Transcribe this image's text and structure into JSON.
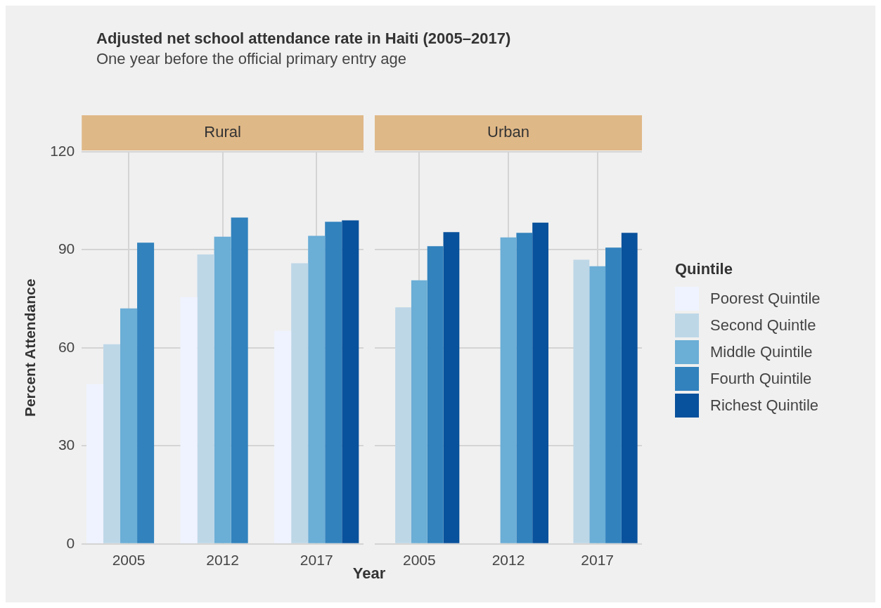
{
  "chart_data": [
    {
      "type": "bar",
      "title": "Adjusted net school attendance rate in Haiti (2005–2017)",
      "subtitle": "One year before the official primary entry age",
      "ylabel": "Percent Attendance",
      "xlabel": "Year",
      "annotations": [
        "Rural"
      ],
      "categories": [
        "2005",
        "2012",
        "2017"
      ],
      "ylim": [
        0,
        120
      ],
      "yticks": [
        0,
        30,
        60,
        90,
        120
      ],
      "grid": true,
      "legend": "right",
      "legend_title": "Quintile",
      "series": [
        {
          "name": "Poorest Quintile",
          "color": "#eff3ff",
          "values": [
            48.9,
            75.5,
            65.2
          ]
        },
        {
          "name": "Second Quintle",
          "color": "#bdd7e7",
          "values": [
            61.1,
            88.6,
            85.9
          ]
        },
        {
          "name": "Middle Quintile",
          "color": "#6baed6",
          "values": [
            72.1,
            94.0,
            94.3
          ]
        },
        {
          "name": "Fourth Quintile",
          "color": "#3182bd",
          "values": [
            92.2,
            99.9,
            98.6
          ]
        },
        {
          "name": "Richest Quintile",
          "color": "#08519c",
          "values": [
            0,
            0,
            99.0
          ]
        }
      ]
    },
    {
      "type": "bar",
      "annotations": [
        "Urban"
      ],
      "categories": [
        "2005",
        "2012",
        "2017"
      ],
      "ylim": [
        0,
        120
      ],
      "yticks": [
        0,
        30,
        60,
        90,
        120
      ],
      "grid": true,
      "tick_labels": "x",
      "series": [
        {
          "color": "#eff3ff",
          "values": [
            0,
            0,
            0
          ]
        },
        {
          "color": "#bdd7e7",
          "values": [
            72.4,
            0,
            87.0
          ]
        },
        {
          "color": "#6baed6",
          "values": [
            80.7,
            93.8,
            85.0
          ]
        },
        {
          "color": "#3182bd",
          "values": [
            91.1,
            95.2,
            90.7
          ]
        },
        {
          "color": "#08519c",
          "values": [
            95.4,
            98.3,
            95.2
          ]
        }
      ]
    }
  ]
}
